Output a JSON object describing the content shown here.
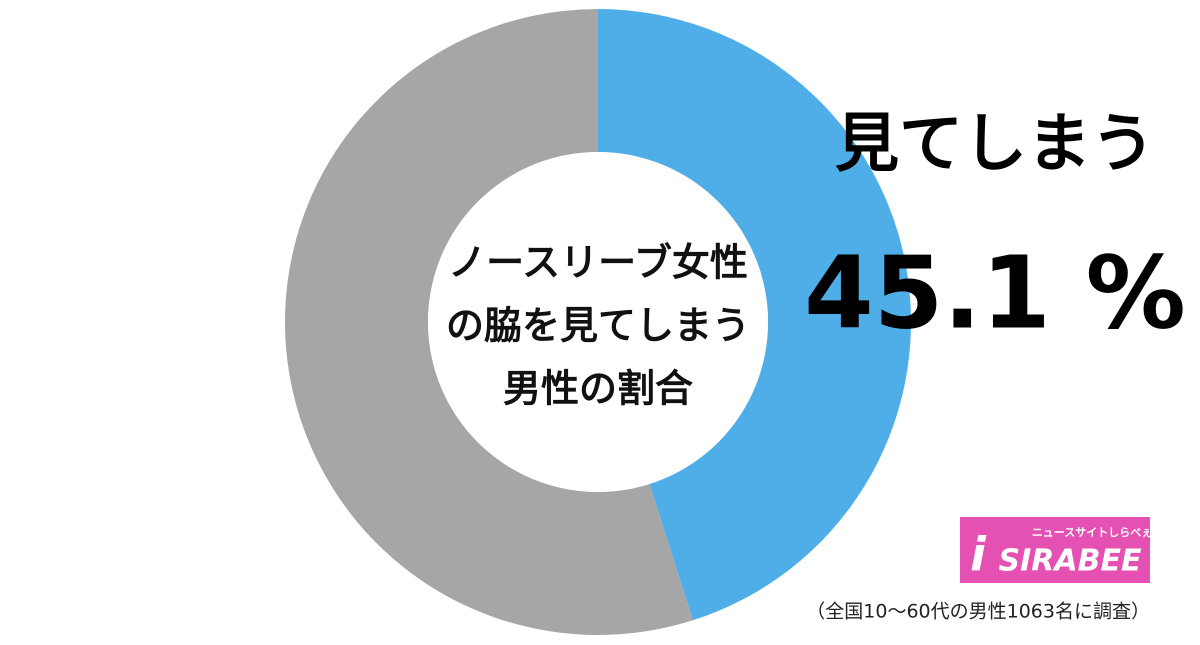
{
  "chart_data": {
    "type": "donut",
    "categories": [
      "見てしまう",
      null
    ],
    "values": [
      45.1,
      54.9
    ],
    "value_labels": [
      "45.1 %",
      null
    ],
    "colors": [
      "#4faee8",
      "#a6a6a6"
    ],
    "center_label": [
      "ノースリーブ女性",
      "の脇を見てしまう",
      "男性の割合"
    ],
    "note": "（全国10〜60代の男性1063名に調査）",
    "logo": {
      "name": "SIRABEE",
      "tagline": "ニュースサイトしらべぇ"
    }
  }
}
